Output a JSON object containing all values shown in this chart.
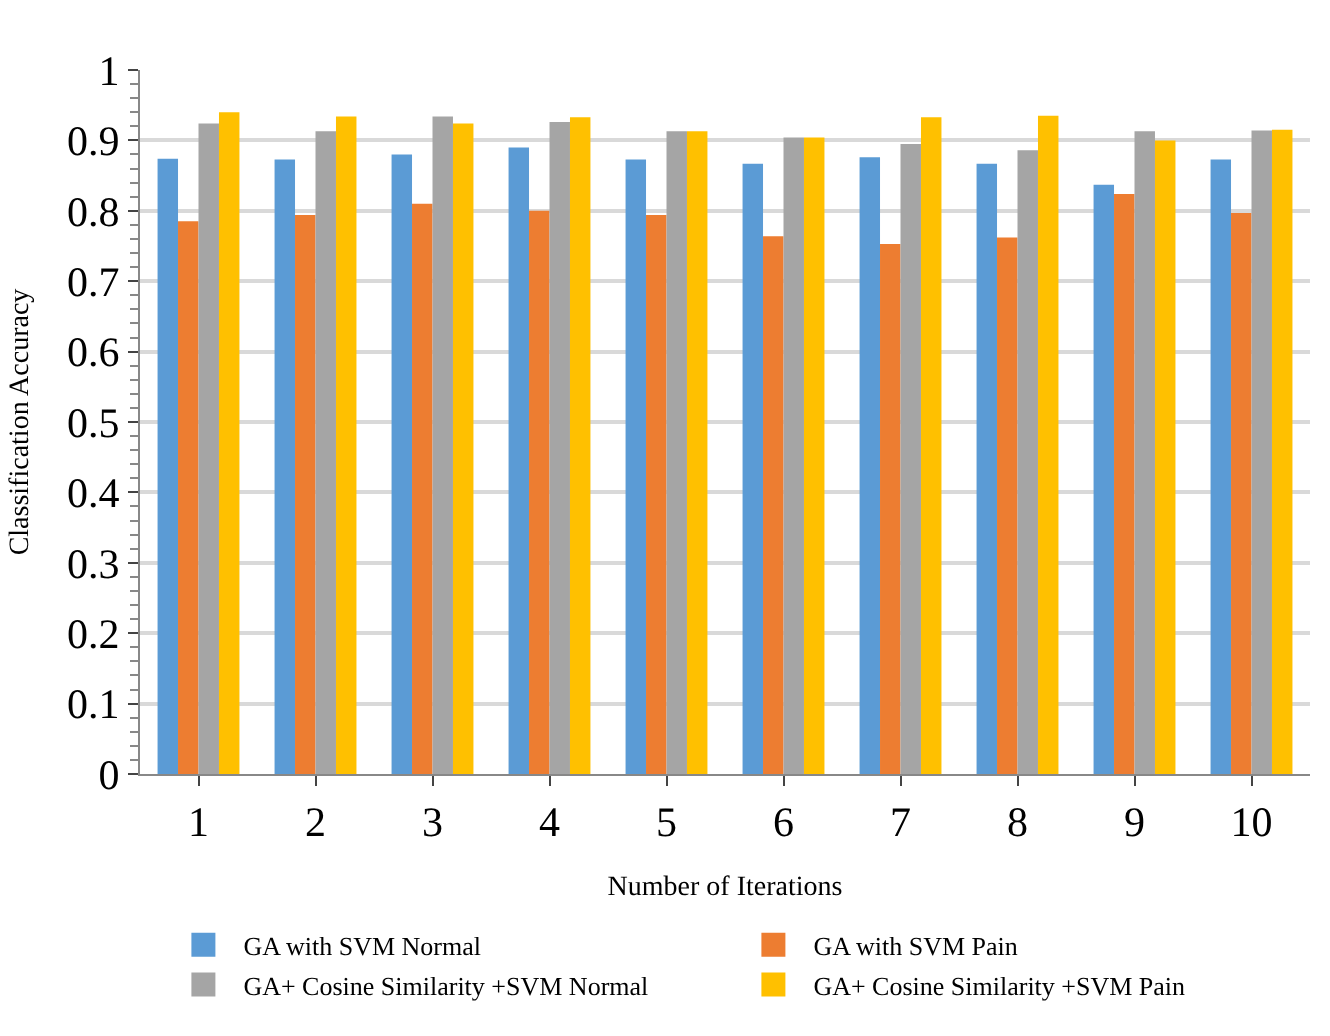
{
  "chart_data": {
    "type": "bar",
    "xlabel": "Number of Iterations",
    "ylabel": "Classification Accuracy",
    "categories": [
      "1",
      "2",
      "3",
      "4",
      "5",
      "6",
      "7",
      "8",
      "9",
      "10"
    ],
    "series": [
      {
        "name": "GA with SVM Normal",
        "color": "#5b9bd5",
        "values": [
          0.874,
          0.873,
          0.88,
          0.89,
          0.873,
          0.867,
          0.876,
          0.867,
          0.837,
          0.873
        ]
      },
      {
        "name": "GA with SVM Pain",
        "color": "#ed7d31",
        "values": [
          0.785,
          0.794,
          0.81,
          0.8,
          0.794,
          0.764,
          0.753,
          0.762,
          0.824,
          0.797
        ]
      },
      {
        "name": "GA+ Cosine Similarity +SVM Normal",
        "color": "#a5a5a5",
        "values": [
          0.924,
          0.913,
          0.934,
          0.926,
          0.913,
          0.904,
          0.895,
          0.886,
          0.913,
          0.914
        ]
      },
      {
        "name": "GA+ Cosine Similarity +SVM Pain",
        "color": "#ffc000",
        "values": [
          0.94,
          0.934,
          0.924,
          0.933,
          0.913,
          0.904,
          0.933,
          0.935,
          0.9,
          0.915
        ]
      }
    ],
    "ylim": [
      0,
      1
    ],
    "yticks": [
      0,
      0.1,
      0.2,
      0.3,
      0.4,
      0.5,
      0.6,
      0.7,
      0.8,
      0.9,
      1
    ],
    "grid": "y",
    "legend": "bottom"
  }
}
